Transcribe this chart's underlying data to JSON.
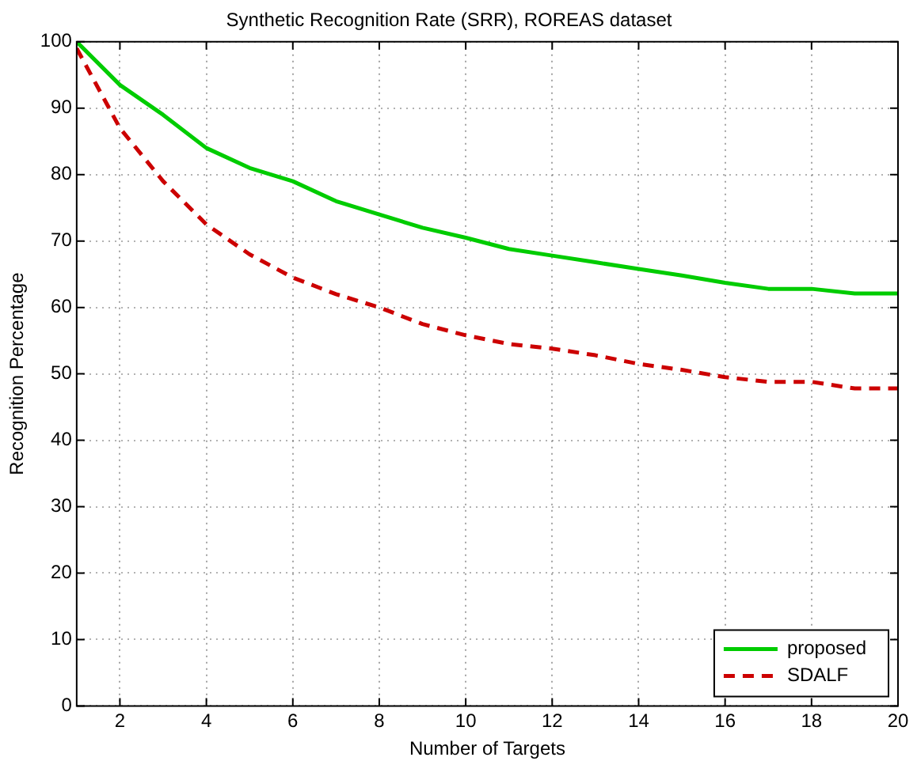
{
  "chart_data": {
    "type": "line",
    "title": "Synthetic Recognition Rate (SRR), ROREAS dataset",
    "xlabel": "Number of Targets",
    "ylabel": "Recognition Percentage",
    "x": [
      1,
      2,
      3,
      4,
      5,
      6,
      7,
      8,
      9,
      10,
      11,
      12,
      13,
      14,
      15,
      16,
      17,
      18,
      19,
      20
    ],
    "series": [
      {
        "name": "proposed",
        "color": "#00cc00",
        "line_style": "solid",
        "values": [
          100,
          93.5,
          89,
          84,
          81,
          79,
          76,
          74,
          72,
          70.5,
          68.8,
          67.8,
          66.8,
          65.8,
          64.8,
          63.7,
          62.8,
          62.8,
          62.1,
          62.1
        ]
      },
      {
        "name": "SDALF",
        "color": "#cc0000",
        "line_style": "dashed",
        "values": [
          99,
          87,
          79,
          72.5,
          68,
          64.5,
          62,
          60,
          57.5,
          55.8,
          54.5,
          53.8,
          52.8,
          51.5,
          50.6,
          49.5,
          48.8,
          48.8,
          47.8,
          47.8
        ]
      }
    ],
    "xlim": [
      1,
      20
    ],
    "xticks": [
      2,
      4,
      6,
      8,
      10,
      12,
      14,
      16,
      18,
      20
    ],
    "ylim": [
      0,
      100
    ],
    "yticks": [
      0,
      10,
      20,
      30,
      40,
      50,
      60,
      70,
      80,
      90,
      100
    ],
    "grid": true,
    "legend": "bottom right",
    "marker": "none"
  }
}
